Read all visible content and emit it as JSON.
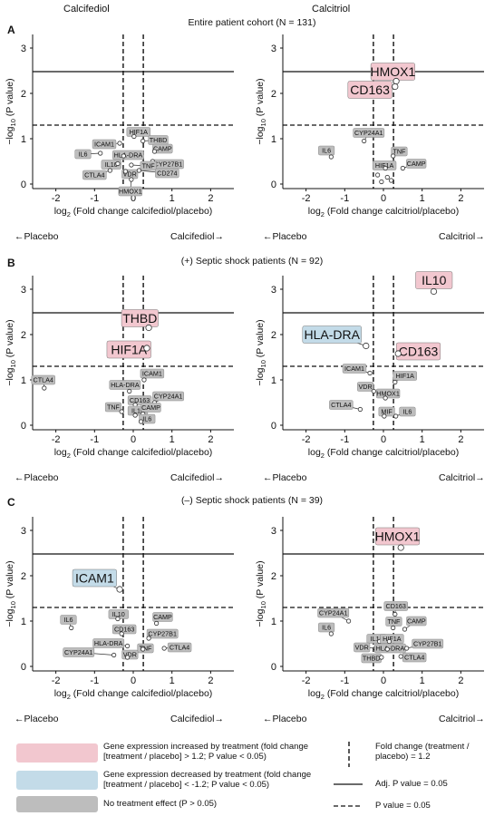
{
  "headers": {
    "left": "Calcifediol",
    "right": "Calcitriol"
  },
  "colors": {
    "increased": "#f2c7cf",
    "decreased": "#c3dbe8",
    "none": "#bdbdbd",
    "point": "#ffffff"
  },
  "sections": [
    {
      "letter": "A",
      "title": "Entire patient cohort (N = 131)",
      "arrows": {
        "left_placebo": "←Placebo",
        "left_treat": "Calcifediol→",
        "right_placebo": "←Placebo",
        "right_treat": "Calcitriol→"
      }
    },
    {
      "letter": "B",
      "title": "(+) Septic shock patients (N = 92)",
      "arrows": {
        "left_placebo": "←Placebo",
        "left_treat": "Calcifediol→",
        "right_placebo": "←Placebo",
        "right_treat": "Calcitriol→"
      }
    },
    {
      "letter": "C",
      "title": "(–) Septic shock patients (N = 39)",
      "arrows": {
        "left_placebo": "←Placebo",
        "left_treat": "Calcifediol→",
        "right_placebo": "←Placebo",
        "right_treat": "Calcitriol→"
      }
    }
  ],
  "legend": {
    "increased": "Gene expression increased by treatment (fold change [treatment / placebo] > 1.2; P value < 0.05)",
    "decreased": "Gene expression decreased by treatment (fold change [treatment / placebo] < -1.2; P value < 0.05)",
    "none": "No treatment effect (P > 0.05)",
    "fold": "Fold change (treatment / placebo) = 1.2",
    "adj": "Adj. P value = 0.05",
    "p": "P value = 0.05"
  },
  "chart_data": [
    {
      "type": "scatter",
      "panel": "A-left",
      "xlabel": "log2 (Fold change calcifediol/placebo)",
      "ylabel": "-log10 (P value)",
      "xlim": [
        -2.6,
        2.6
      ],
      "ylim": [
        -0.1,
        3.3
      ],
      "xticks": [
        -2,
        -1,
        0,
        1,
        2
      ],
      "yticks": [
        0,
        1,
        2,
        3
      ],
      "threshold_adj_p": 2.48,
      "threshold_p": 1.3,
      "fold_lines": [
        -0.26,
        0.26
      ],
      "points": [
        {
          "label": "HIF1A",
          "x": 0.02,
          "y": 1.05,
          "status": "none"
        },
        {
          "label": "THBD",
          "x": 0.25,
          "y": 0.95,
          "status": "none"
        },
        {
          "label": "ICAM1",
          "x": -0.35,
          "y": 0.9,
          "status": "none"
        },
        {
          "label": "CAMP",
          "x": 0.55,
          "y": 0.72,
          "status": "none"
        },
        {
          "label": "IL6",
          "x": -0.85,
          "y": 0.68,
          "status": "none"
        },
        {
          "label": "HLA-DRA",
          "x": -0.25,
          "y": 0.62,
          "status": "none"
        },
        {
          "label": "CYP27B1",
          "x": 0.5,
          "y": 0.5,
          "status": "none"
        },
        {
          "label": "IL10",
          "x": -0.4,
          "y": 0.45,
          "status": "none"
        },
        {
          "label": "TNF",
          "x": -0.05,
          "y": 0.42,
          "status": "none"
        },
        {
          "label": "CTLA4",
          "x": -0.6,
          "y": 0.3,
          "status": "none"
        },
        {
          "label": "VDR",
          "x": -0.2,
          "y": 0.28,
          "status": "none"
        },
        {
          "label": "CD274",
          "x": 0.15,
          "y": 0.3,
          "status": "none"
        },
        {
          "label": "HMOX1",
          "x": -0.05,
          "y": 0.1,
          "status": "none"
        }
      ]
    },
    {
      "type": "scatter",
      "panel": "A-right",
      "xlabel": "log2 (Fold change calcitriol/placebo)",
      "ylabel": "-log10 (P value)",
      "xlim": [
        -2.6,
        2.6
      ],
      "ylim": [
        -0.1,
        3.3
      ],
      "xticks": [
        -2,
        -1,
        0,
        1,
        2
      ],
      "yticks": [
        0,
        1,
        2,
        3
      ],
      "threshold_adj_p": 2.48,
      "threshold_p": 1.3,
      "fold_lines": [
        -0.26,
        0.26
      ],
      "points": [
        {
          "label": "HMOX1",
          "x": 0.33,
          "y": 2.27,
          "status": "increased"
        },
        {
          "label": "CD163",
          "x": 0.3,
          "y": 2.15,
          "status": "increased"
        },
        {
          "label": "CYP24A1",
          "x": -0.5,
          "y": 0.95,
          "status": "none"
        },
        {
          "label": "IL6",
          "x": -1.35,
          "y": 0.6,
          "status": "none"
        },
        {
          "label": "TNF",
          "x": 0.25,
          "y": 0.62,
          "status": "none"
        },
        {
          "label": "HIF1A",
          "x": 0.05,
          "y": 0.35,
          "status": "none"
        },
        {
          "label": "CAMP",
          "x": 0.5,
          "y": 0.35,
          "status": "none"
        },
        {
          "label": "",
          "x": -0.15,
          "y": 0.2,
          "status": "none"
        },
        {
          "label": "",
          "x": 0.1,
          "y": 0.15,
          "status": "none"
        },
        {
          "label": "",
          "x": -0.05,
          "y": 0.05,
          "status": "none"
        },
        {
          "label": "",
          "x": 0.2,
          "y": 0.08,
          "status": "none"
        }
      ]
    },
    {
      "type": "scatter",
      "panel": "B-left",
      "xlabel": "log2 (Fold change calcifediol/placebo)",
      "ylabel": "-log10 (P value)",
      "xlim": [
        -2.6,
        2.6
      ],
      "ylim": [
        -0.1,
        3.3
      ],
      "xticks": [
        -2,
        -1,
        0,
        1,
        2
      ],
      "yticks": [
        0,
        1,
        2,
        3
      ],
      "threshold_adj_p": 2.48,
      "threshold_p": 1.3,
      "fold_lines": [
        -0.26,
        0.26
      ],
      "points": [
        {
          "label": "THBD",
          "x": 0.4,
          "y": 2.15,
          "status": "increased"
        },
        {
          "label": "HIF1A",
          "x": 0.35,
          "y": 1.7,
          "status": "increased"
        },
        {
          "label": "ICAM1",
          "x": 0.28,
          "y": 1.0,
          "status": "none"
        },
        {
          "label": "CTLA4",
          "x": -2.3,
          "y": 0.82,
          "status": "none"
        },
        {
          "label": "HLA-DRA",
          "x": -0.1,
          "y": 0.75,
          "status": "none"
        },
        {
          "label": "CYP24A1",
          "x": 0.55,
          "y": 0.5,
          "status": "none"
        },
        {
          "label": "CD163",
          "x": 0.05,
          "y": 0.45,
          "status": "none"
        },
        {
          "label": "TNF",
          "x": -0.3,
          "y": 0.3,
          "status": "none"
        },
        {
          "label": "IL10",
          "x": 0.05,
          "y": 0.22,
          "status": "none"
        },
        {
          "label": "CAMP",
          "x": 0.25,
          "y": 0.25,
          "status": "none"
        },
        {
          "label": "IL6",
          "x": 0.2,
          "y": 0.08,
          "status": "none"
        }
      ]
    },
    {
      "type": "scatter",
      "panel": "B-right",
      "xlabel": "log2 (Fold change calcitriol/placebo)",
      "ylabel": "-log10 (P value)",
      "xlim": [
        -2.6,
        2.6
      ],
      "ylim": [
        -0.1,
        3.3
      ],
      "xticks": [
        -2,
        -1,
        0,
        1,
        2
      ],
      "yticks": [
        0,
        1,
        2,
        3
      ],
      "threshold_adj_p": 2.48,
      "threshold_p": 1.3,
      "fold_lines": [
        -0.26,
        0.26
      ],
      "points": [
        {
          "label": "IL10",
          "x": 1.3,
          "y": 2.95,
          "status": "increased"
        },
        {
          "label": "HLA-DRA",
          "x": -0.45,
          "y": 1.75,
          "status": "decreased"
        },
        {
          "label": "CD163",
          "x": 0.38,
          "y": 1.58,
          "status": "increased"
        },
        {
          "label": "ICAM1",
          "x": -0.35,
          "y": 1.15,
          "status": "none"
        },
        {
          "label": "HIF1A",
          "x": 0.3,
          "y": 0.95,
          "status": "none"
        },
        {
          "label": "VDR",
          "x": -0.25,
          "y": 0.75,
          "status": "none"
        },
        {
          "label": "HMOX1",
          "x": 0.05,
          "y": 0.6,
          "status": "none"
        },
        {
          "label": "CTLA4",
          "x": -0.6,
          "y": 0.35,
          "status": "none"
        },
        {
          "label": "MIF",
          "x": 0.02,
          "y": 0.2,
          "status": "none"
        },
        {
          "label": "IL6",
          "x": 0.32,
          "y": 0.2,
          "status": "none"
        }
      ]
    },
    {
      "type": "scatter",
      "panel": "C-left",
      "xlabel": "log2 (Fold change calcifediol/placebo)",
      "ylabel": "-log10 (P value)",
      "xlim": [
        -2.6,
        2.6
      ],
      "ylim": [
        -0.1,
        3.3
      ],
      "xticks": [
        -2,
        -1,
        0,
        1,
        2
      ],
      "yticks": [
        0,
        1,
        2,
        3
      ],
      "threshold_adj_p": 2.48,
      "threshold_p": 1.3,
      "fold_lines": [
        -0.26,
        0.26
      ],
      "points": [
        {
          "label": "ICAM1",
          "x": -0.35,
          "y": 1.7,
          "status": "decreased"
        },
        {
          "label": "IL10",
          "x": -0.4,
          "y": 1.05,
          "status": "none"
        },
        {
          "label": "CAMP",
          "x": 0.6,
          "y": 0.95,
          "status": "none"
        },
        {
          "label": "IL6",
          "x": -1.6,
          "y": 0.85,
          "status": "none"
        },
        {
          "label": "CD163",
          "x": -0.3,
          "y": 0.72,
          "status": "none"
        },
        {
          "label": "CYP27B1",
          "x": 0.4,
          "y": 0.62,
          "status": "none"
        },
        {
          "label": "HLA-DRA",
          "x": -0.15,
          "y": 0.45,
          "status": "none"
        },
        {
          "label": "TNF",
          "x": 0.25,
          "y": 0.38,
          "status": "none"
        },
        {
          "label": "CTLA4",
          "x": 0.8,
          "y": 0.4,
          "status": "none"
        },
        {
          "label": "CYP24A1",
          "x": -0.5,
          "y": 0.25,
          "status": "none"
        },
        {
          "label": "VDR",
          "x": -0.15,
          "y": 0.2,
          "status": "none"
        }
      ]
    },
    {
      "type": "scatter",
      "panel": "C-right",
      "xlabel": "log2 (Fold change calcitriol/placebo)",
      "ylabel": "-log10 (P value)",
      "xlim": [
        -2.6,
        2.6
      ],
      "ylim": [
        -0.1,
        3.3
      ],
      "xticks": [
        -2,
        -1,
        0,
        1,
        2
      ],
      "yticks": [
        0,
        1,
        2,
        3
      ],
      "threshold_adj_p": 2.48,
      "threshold_p": 1.3,
      "fold_lines": [
        -0.26,
        0.26
      ],
      "points": [
        {
          "label": "HMOX1",
          "x": 0.45,
          "y": 2.62,
          "status": "increased"
        },
        {
          "label": "CD163",
          "x": 0.3,
          "y": 1.15,
          "status": "none"
        },
        {
          "label": "CYP24A1",
          "x": -0.9,
          "y": 1.0,
          "status": "none"
        },
        {
          "label": "TNF",
          "x": 0.25,
          "y": 0.85,
          "status": "none"
        },
        {
          "label": "CAMP",
          "x": 0.55,
          "y": 0.82,
          "status": "none"
        },
        {
          "label": "IL6",
          "x": -1.35,
          "y": 0.72,
          "status": "none"
        },
        {
          "label": "IL10",
          "x": -0.1,
          "y": 0.55,
          "status": "none"
        },
        {
          "label": "HIF1A",
          "x": 0.15,
          "y": 0.55,
          "status": "none"
        },
        {
          "label": "VDR",
          "x": -0.2,
          "y": 0.4,
          "status": "none"
        },
        {
          "label": "HLA-DRA",
          "x": 0.1,
          "y": 0.38,
          "status": "none"
        },
        {
          "label": "CYP27B1",
          "x": 0.6,
          "y": 0.4,
          "status": "none"
        },
        {
          "label": "THBD",
          "x": -0.05,
          "y": 0.2,
          "status": "none"
        },
        {
          "label": "CTLA4",
          "x": 0.45,
          "y": 0.22,
          "status": "none"
        }
      ]
    }
  ]
}
